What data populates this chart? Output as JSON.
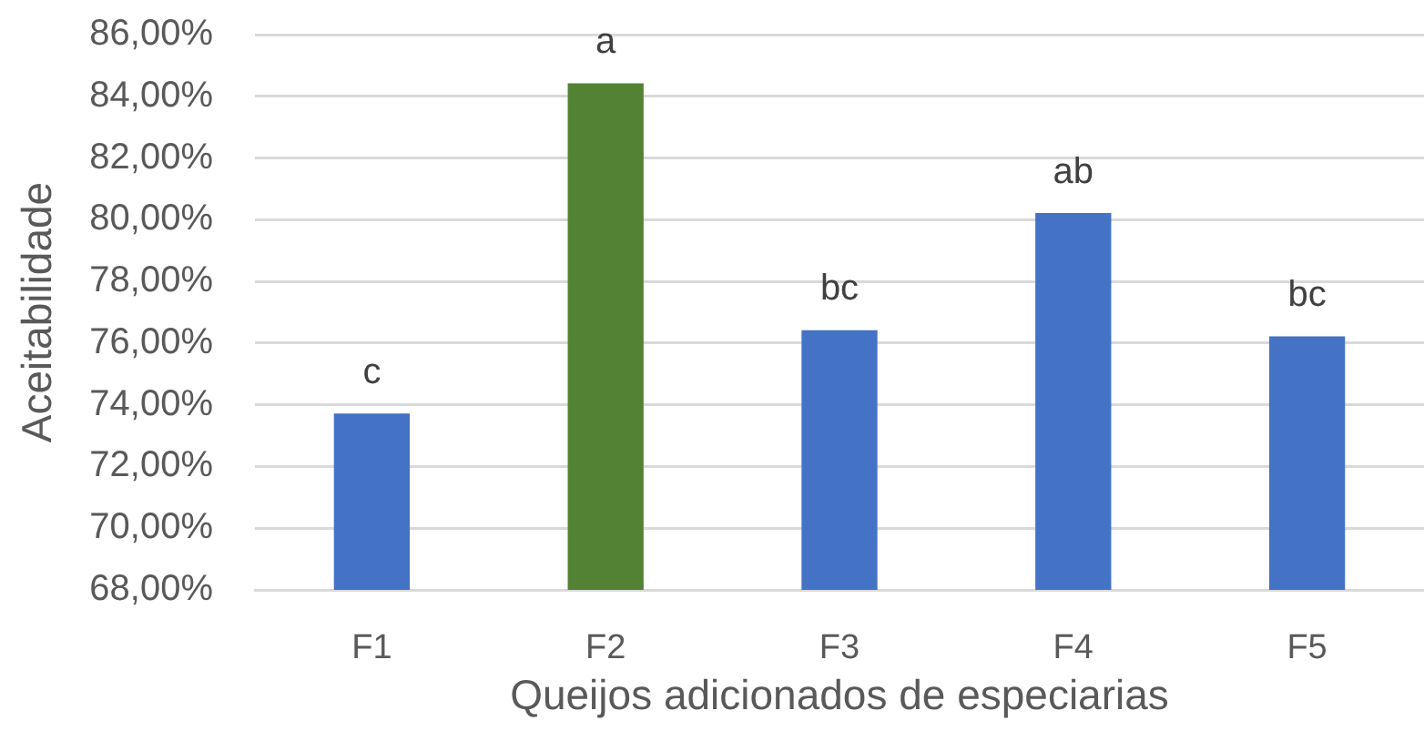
{
  "chart_data": {
    "type": "bar",
    "xlabel": "Queijos adicionados de especiarias",
    "ylabel": "Aceitabilidade",
    "categories": [
      "F1",
      "F2",
      "F3",
      "F4",
      "F5"
    ],
    "values": [
      73.7,
      84.4,
      76.4,
      80.2,
      76.2
    ],
    "colors": [
      "#4472c4",
      "#548235",
      "#4472c4",
      "#4472c4",
      "#4472c4"
    ],
    "ylim": [
      68,
      86
    ],
    "yticks": [
      {
        "value": 68,
        "label": "68,00%"
      },
      {
        "value": 70,
        "label": "70,00%"
      },
      {
        "value": 72,
        "label": "72,00%"
      },
      {
        "value": 74,
        "label": "74,00%"
      },
      {
        "value": 76,
        "label": "76,00%"
      },
      {
        "value": 78,
        "label": "78,00%"
      },
      {
        "value": 80,
        "label": "80,00%"
      },
      {
        "value": 82,
        "label": "82,00%"
      },
      {
        "value": 84,
        "label": "84,00%"
      },
      {
        "value": 86,
        "label": "86,00%"
      }
    ],
    "grid": "y",
    "annotations": [
      {
        "text": "c",
        "x": "F1",
        "y": 73.7
      },
      {
        "text": "a",
        "x": "F2",
        "y": 84.4
      },
      {
        "text": "bc",
        "x": "F3",
        "y": 76.4
      },
      {
        "text": "ab",
        "x": "F4",
        "y": 80.2
      },
      {
        "text": "bc",
        "x": "F5",
        "y": 76.2
      }
    ]
  }
}
